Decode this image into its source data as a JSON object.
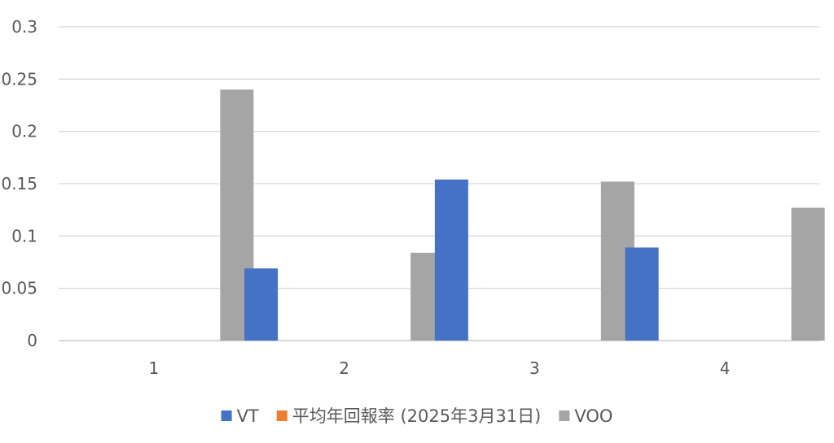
{
  "chart_data": {
    "type": "bar",
    "categories": [
      "1",
      "2",
      "3",
      "4"
    ],
    "series": [
      {
        "name": "VT",
        "color": "#4472C4",
        "values": [
          null,
          0.069,
          0.154,
          0.089
        ]
      },
      {
        "name": "平均年回報率 (2025年3月31日)",
        "color": "#ED7D31",
        "values": [
          null,
          null,
          null,
          null
        ]
      },
      {
        "name": "VOO",
        "color": "#A5A5A5",
        "values": [
          0.24,
          0.084,
          0.152,
          0.127
        ]
      }
    ],
    "ylim": [
      0,
      0.3
    ],
    "yticks": [
      "0",
      "0.05",
      "0.1",
      "0.15",
      "0.2",
      "0.25",
      "0.3"
    ],
    "grid": true,
    "legend_position": "bottom"
  }
}
